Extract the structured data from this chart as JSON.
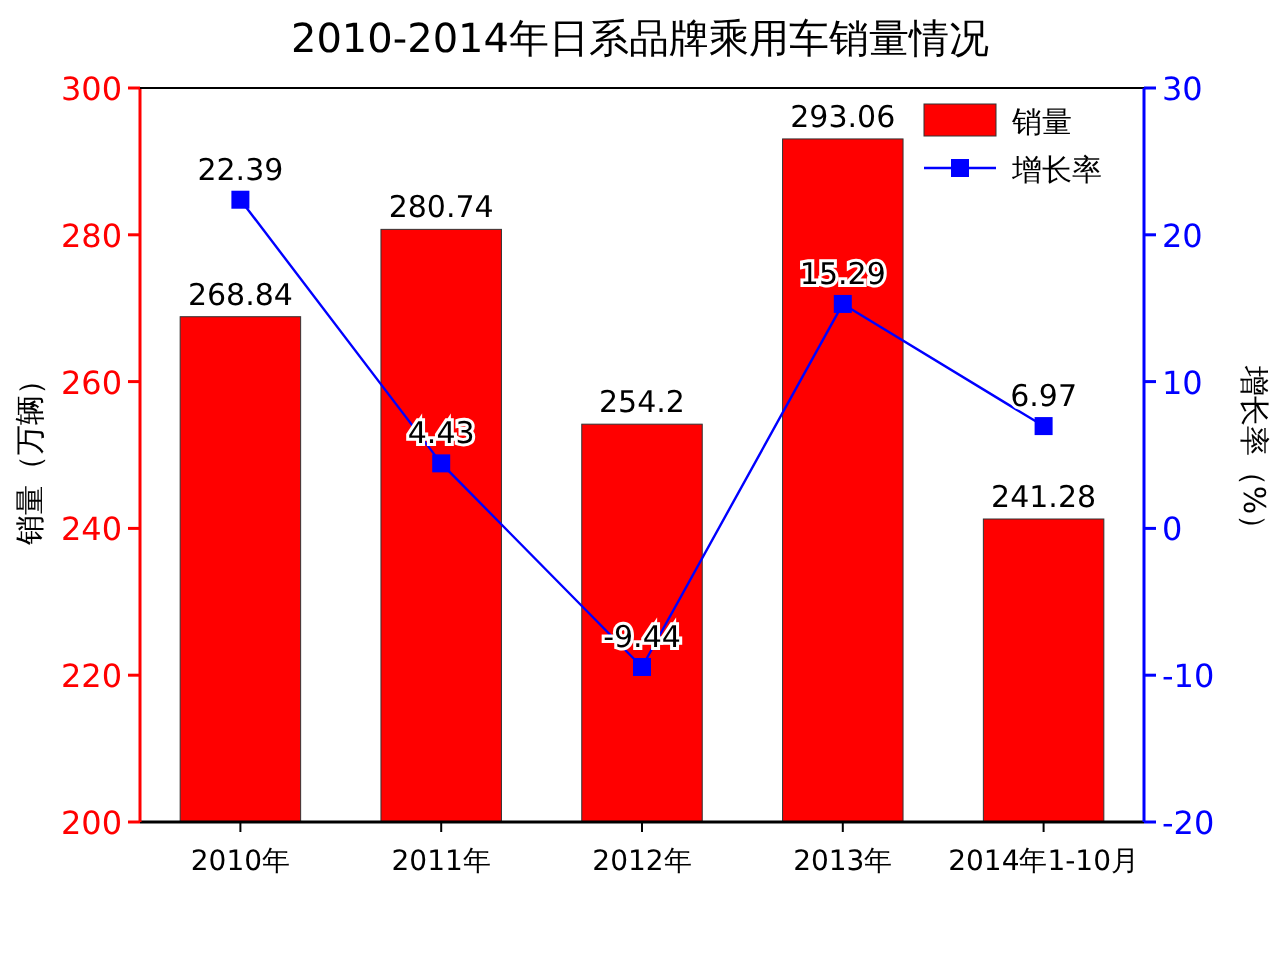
{
  "chart_data": {
    "type": "bar",
    "title": "2010-2014年日系品牌乘用车销量情况",
    "ylabel": "销量（万辆）",
    "y2label": "增长率（%）",
    "categories": [
      "2010年",
      "2011年",
      "2012年",
      "2013年",
      "2014年1-10月"
    ],
    "series": [
      {
        "name": "销量",
        "color": "#ff0000",
        "values": [
          268.84,
          280.74,
          254.2,
          293.06,
          241.28
        ]
      },
      {
        "name": "增长率",
        "type": "line",
        "axis": "y2",
        "color": "#0000ff",
        "values": [
          22.39,
          4.43,
          -9.44,
          15.29,
          6.97
        ]
      }
    ],
    "ylim": [
      200,
      300
    ],
    "yticks": [
      200,
      220,
      240,
      260,
      280,
      300
    ],
    "y2lim": [
      -20,
      30
    ],
    "y2ticks": [
      -20,
      -10,
      0,
      10,
      20,
      30
    ],
    "data_labels": true,
    "legend": "top right",
    "marker": "square",
    "line_style": "solid",
    "grid": false
  }
}
